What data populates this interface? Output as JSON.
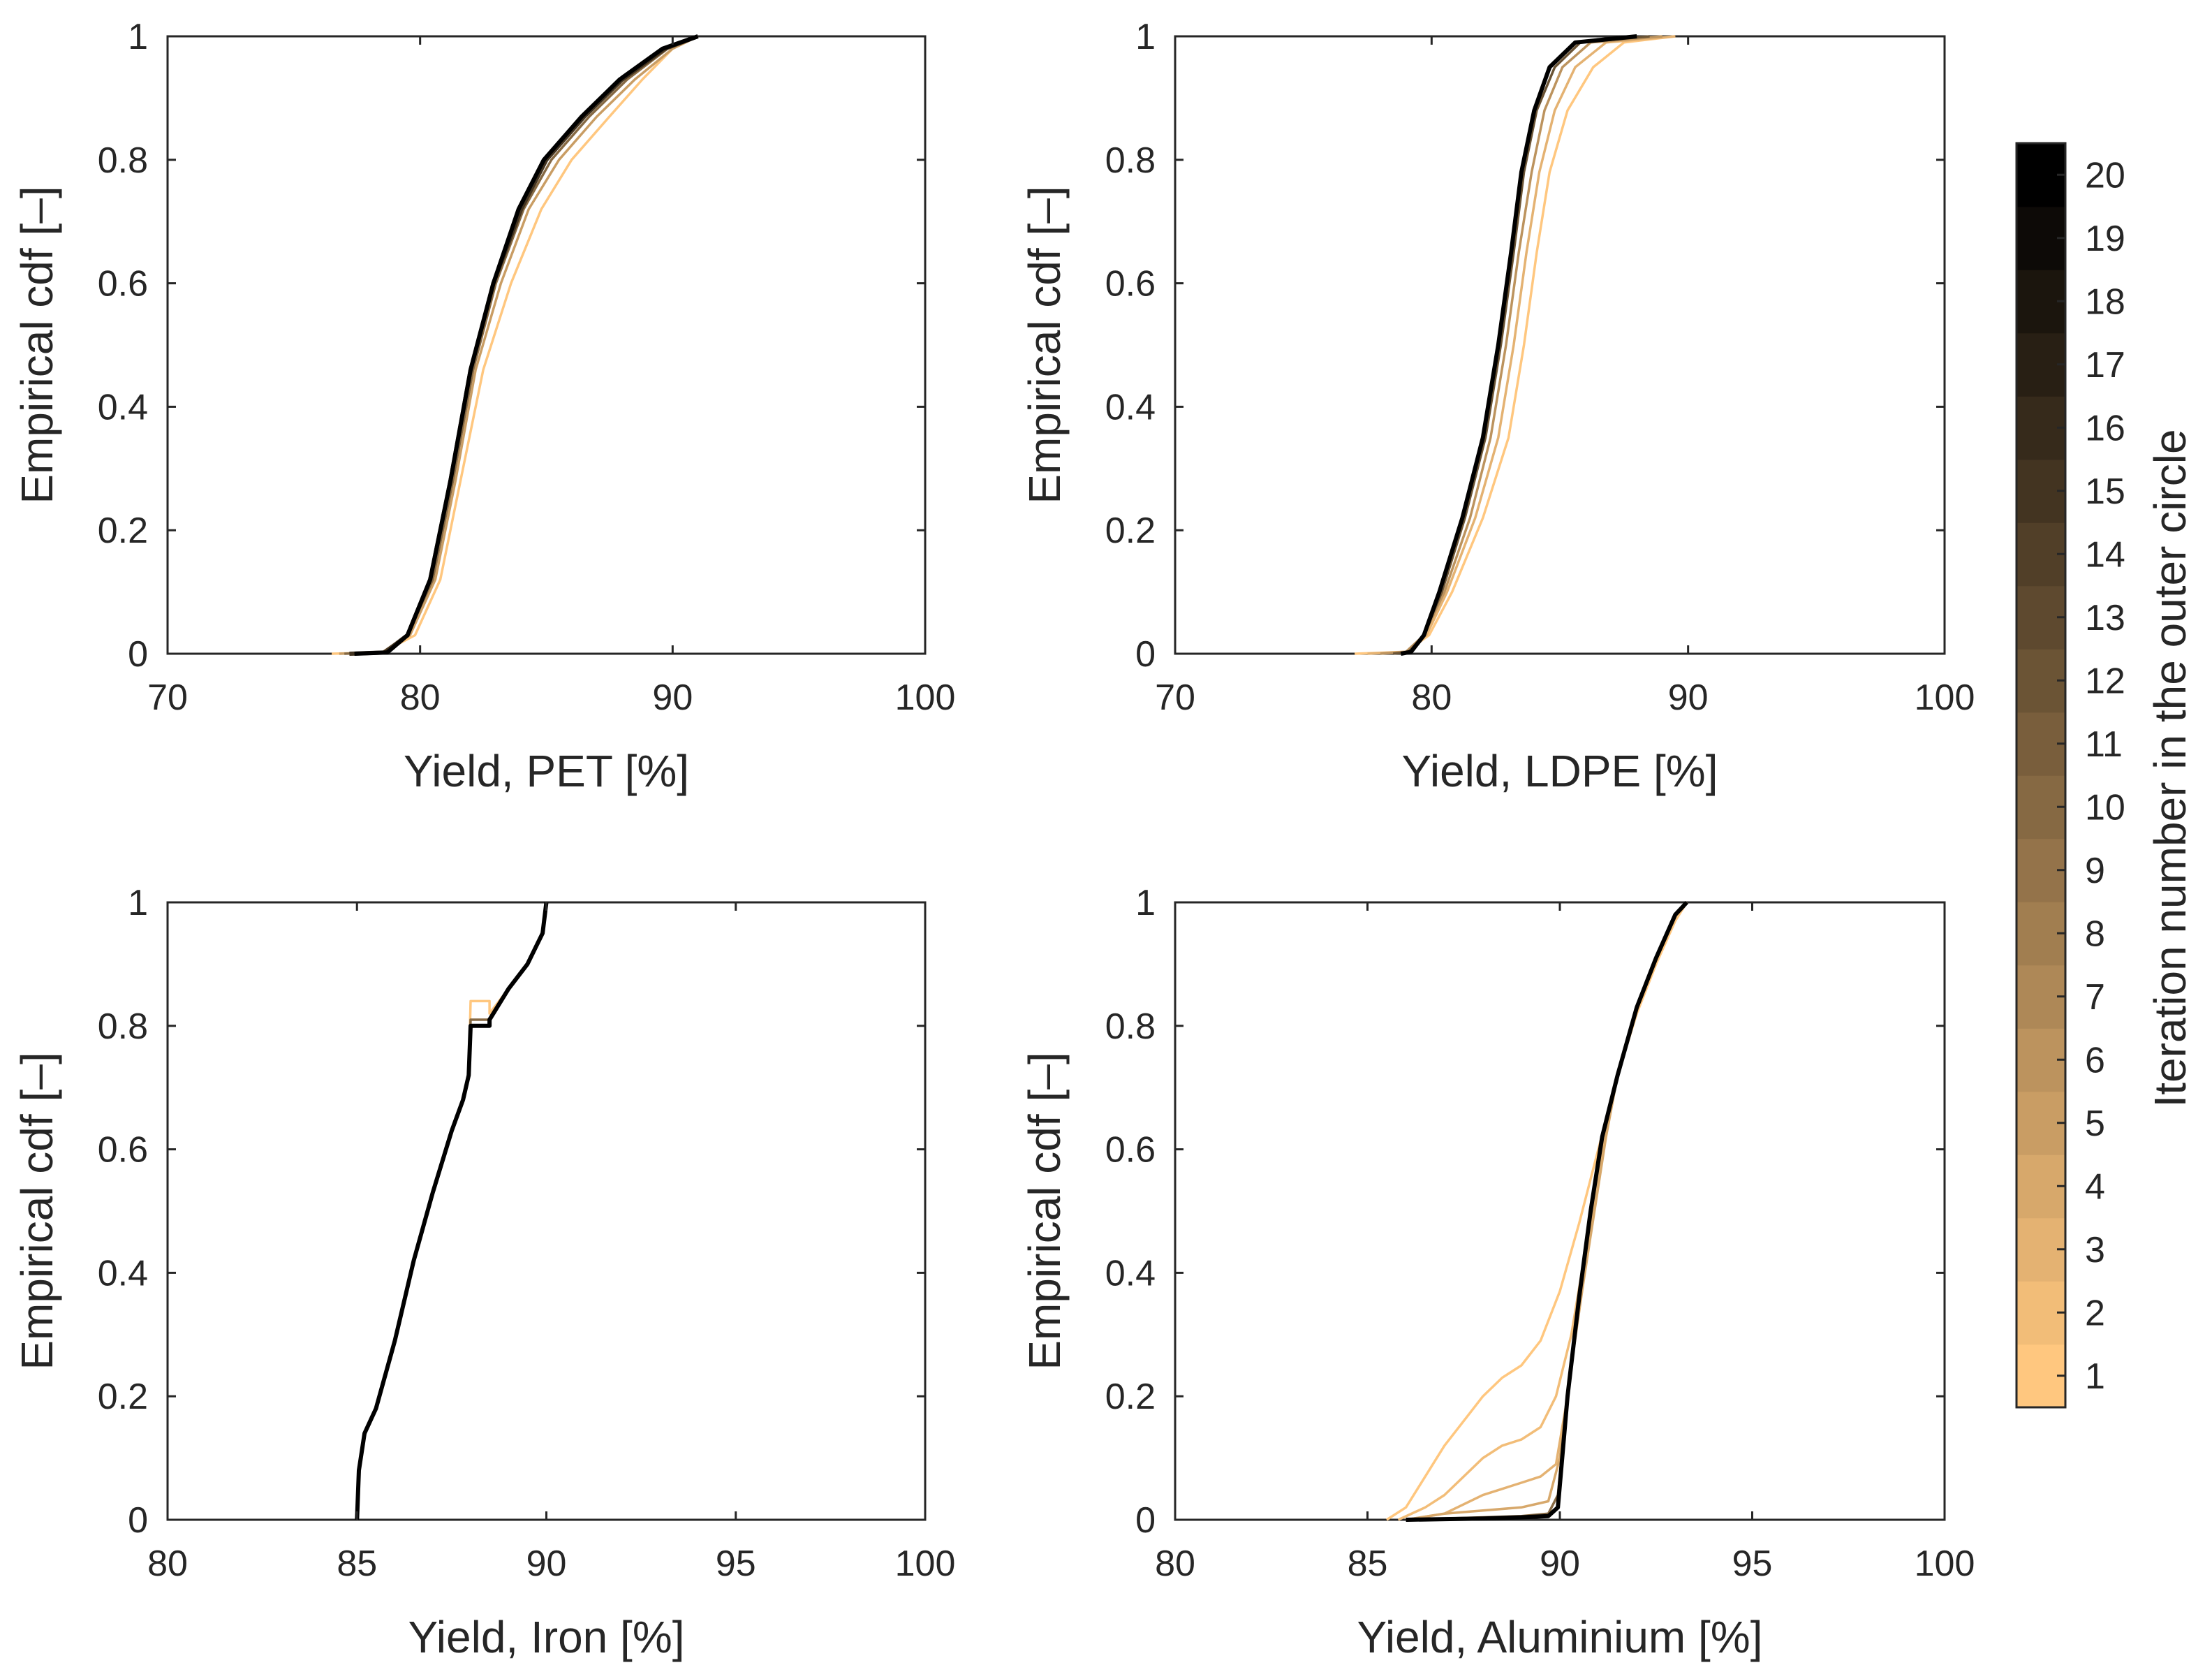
{
  "figure": {
    "colorbar": {
      "label": "Iteration number in the outer circle",
      "ticks": [
        "1",
        "2",
        "3",
        "4",
        "5",
        "6",
        "7",
        "8",
        "9",
        "10",
        "11",
        "12",
        "13",
        "14",
        "15",
        "16",
        "17",
        "18",
        "19",
        "20"
      ],
      "color_low": "#ffc77f",
      "color_high": "#000000"
    }
  },
  "chart_data": [
    {
      "type": "line",
      "id": "pet",
      "title": "",
      "xlabel": "Yield, PET [%]",
      "ylabel": "Empirical cdf [–]",
      "xlim": [
        70,
        100
      ],
      "ylim": [
        0,
        1
      ],
      "xticks": [
        "70",
        "80",
        "90",
        "100"
      ],
      "yticks": [
        "0",
        "0.2",
        "0.4",
        "0.6",
        "0.8",
        "1"
      ],
      "series": [
        {
          "name": "iteration 1",
          "iteration": 1,
          "x": [
            76.5,
            78.5,
            79.8,
            80.8,
            81.6,
            82.5,
            83.6,
            84.8,
            86.0,
            87.5,
            88.8,
            90.0,
            91.0
          ],
          "y": [
            0,
            0.002,
            0.03,
            0.12,
            0.28,
            0.46,
            0.6,
            0.72,
            0.8,
            0.87,
            0.93,
            0.98,
            1.0
          ]
        },
        {
          "name": "iteration 5",
          "iteration": 5,
          "x": [
            76.8,
            78.5,
            79.6,
            80.6,
            81.4,
            82.2,
            83.2,
            84.3,
            85.5,
            87.0,
            88.5,
            90.0,
            91.0
          ],
          "y": [
            0,
            0.002,
            0.03,
            0.12,
            0.28,
            0.46,
            0.6,
            0.72,
            0.8,
            0.87,
            0.93,
            0.98,
            1.0
          ]
        },
        {
          "name": "iteration 10",
          "iteration": 10,
          "x": [
            77.0,
            78.5,
            79.5,
            80.5,
            81.3,
            82.1,
            83.0,
            84.1,
            85.2,
            86.7,
            88.2,
            89.8,
            91.0
          ],
          "y": [
            0,
            0.002,
            0.03,
            0.12,
            0.28,
            0.46,
            0.6,
            0.72,
            0.8,
            0.87,
            0.93,
            0.98,
            1.0
          ]
        },
        {
          "name": "iteration 15",
          "iteration": 15,
          "x": [
            77.2,
            78.6,
            79.5,
            80.4,
            81.2,
            82.0,
            82.9,
            84.0,
            85.0,
            86.5,
            88.0,
            89.7,
            91.0
          ],
          "y": [
            0,
            0.002,
            0.03,
            0.12,
            0.28,
            0.46,
            0.6,
            0.72,
            0.8,
            0.87,
            0.93,
            0.98,
            1.0
          ]
        },
        {
          "name": "iteration 20",
          "iteration": 20,
          "x": [
            77.4,
            78.7,
            79.5,
            80.4,
            81.2,
            82.0,
            82.9,
            83.9,
            84.9,
            86.4,
            87.9,
            89.6,
            91.0
          ],
          "y": [
            0,
            0.002,
            0.03,
            0.12,
            0.28,
            0.46,
            0.6,
            0.72,
            0.8,
            0.87,
            0.93,
            0.98,
            1.0
          ]
        }
      ]
    },
    {
      "type": "line",
      "id": "ldpe",
      "title": "",
      "xlabel": "Yield, LDPE [%]",
      "ylabel": "Empirical cdf [–]",
      "xlim": [
        70,
        100
      ],
      "ylim": [
        0,
        1
      ],
      "xticks": [
        "70",
        "80",
        "90",
        "100"
      ],
      "yticks": [
        "0",
        "0.2",
        "0.4",
        "0.6",
        "0.8",
        "1"
      ],
      "series": [
        {
          "name": "iteration 1",
          "iteration": 1,
          "x": [
            77.0,
            79.0,
            79.9,
            80.8,
            82.0,
            83.0,
            83.6,
            84.1,
            84.6,
            85.3,
            86.3,
            87.5,
            89.5
          ],
          "y": [
            0,
            0.003,
            0.03,
            0.1,
            0.22,
            0.35,
            0.5,
            0.65,
            0.78,
            0.88,
            0.95,
            0.99,
            1.0
          ]
        },
        {
          "name": "iteration 3",
          "iteration": 3,
          "x": [
            77.5,
            79.0,
            79.8,
            80.6,
            81.7,
            82.6,
            83.2,
            83.7,
            84.2,
            84.8,
            85.6,
            86.8,
            89.5
          ],
          "y": [
            0,
            0.003,
            0.03,
            0.1,
            0.22,
            0.35,
            0.5,
            0.65,
            0.78,
            0.88,
            0.95,
            0.99,
            1.0
          ]
        },
        {
          "name": "iteration 6",
          "iteration": 6,
          "x": [
            78.0,
            79.0,
            79.7,
            80.5,
            81.5,
            82.3,
            82.9,
            83.4,
            83.9,
            84.4,
            85.1,
            86.2,
            89.0
          ],
          "y": [
            0,
            0.003,
            0.03,
            0.1,
            0.22,
            0.35,
            0.5,
            0.65,
            0.78,
            0.88,
            0.95,
            0.99,
            1.0
          ]
        },
        {
          "name": "iteration 12",
          "iteration": 12,
          "x": [
            78.5,
            79.1,
            79.7,
            80.4,
            81.3,
            82.1,
            82.7,
            83.2,
            83.6,
            84.1,
            84.8,
            85.8,
            88.5
          ],
          "y": [
            0,
            0.003,
            0.03,
            0.1,
            0.22,
            0.35,
            0.5,
            0.65,
            0.78,
            0.88,
            0.95,
            0.99,
            1.0
          ]
        },
        {
          "name": "iteration 20",
          "iteration": 20,
          "x": [
            78.8,
            79.2,
            79.7,
            80.3,
            81.2,
            82.0,
            82.6,
            83.1,
            83.5,
            84.0,
            84.6,
            85.6,
            88.0
          ],
          "y": [
            0,
            0.003,
            0.03,
            0.1,
            0.22,
            0.35,
            0.5,
            0.65,
            0.78,
            0.88,
            0.95,
            0.99,
            1.0
          ]
        }
      ]
    },
    {
      "type": "line",
      "id": "iron",
      "title": "",
      "xlabel": "Yield, Iron [%]",
      "ylabel": "Empirical cdf [–]",
      "xlim": [
        80,
        100
      ],
      "ylim": [
        0,
        1
      ],
      "xticks": [
        "80",
        "85",
        "90",
        "95",
        "100"
      ],
      "yticks": [
        "0",
        "0.2",
        "0.4",
        "0.6",
        "0.8",
        "1"
      ],
      "series": [
        {
          "name": "iteration 1",
          "iteration": 1,
          "x": [
            85.0,
            85.05,
            85.2,
            85.5,
            86.0,
            86.5,
            87.0,
            87.5,
            87.8,
            87.95,
            88.0,
            88.5,
            88.5,
            89.0,
            89.5,
            89.9,
            90.0
          ],
          "y": [
            0,
            0.08,
            0.14,
            0.18,
            0.29,
            0.42,
            0.53,
            0.63,
            0.68,
            0.72,
            0.84,
            0.84,
            0.82,
            0.86,
            0.9,
            0.95,
            1.0
          ]
        },
        {
          "name": "iteration 10",
          "iteration": 10,
          "x": [
            85.0,
            85.05,
            85.2,
            85.5,
            86.0,
            86.5,
            87.0,
            87.5,
            87.8,
            87.95,
            88.0,
            88.5,
            88.5,
            89.0,
            89.5,
            89.9,
            90.0
          ],
          "y": [
            0,
            0.08,
            0.14,
            0.18,
            0.29,
            0.42,
            0.53,
            0.63,
            0.68,
            0.72,
            0.81,
            0.81,
            0.81,
            0.86,
            0.9,
            0.95,
            1.0
          ]
        },
        {
          "name": "iteration 20",
          "iteration": 20,
          "x": [
            85.0,
            85.05,
            85.2,
            85.5,
            86.0,
            86.5,
            87.0,
            87.5,
            87.8,
            87.95,
            88.0,
            88.5,
            88.5,
            89.0,
            89.5,
            89.9,
            90.0
          ],
          "y": [
            0,
            0.08,
            0.14,
            0.18,
            0.29,
            0.42,
            0.53,
            0.63,
            0.68,
            0.72,
            0.8,
            0.8,
            0.81,
            0.86,
            0.9,
            0.95,
            1.0
          ]
        }
      ]
    },
    {
      "type": "line",
      "id": "aluminium",
      "title": "",
      "xlabel": "Yield, Aluminium [%]",
      "ylabel": "Empirical cdf [–]",
      "xlim": [
        80,
        100
      ],
      "ylim": [
        0,
        1
      ],
      "xticks": [
        "80",
        "85",
        "90",
        "95",
        "100"
      ],
      "yticks": [
        "0",
        "0.2",
        "0.4",
        "0.6",
        "0.8",
        "1"
      ],
      "series": [
        {
          "name": "iteration 1",
          "iteration": 1,
          "x": [
            85.5,
            86.0,
            86.5,
            87.0,
            87.5,
            88.0,
            88.5,
            89.0,
            89.5,
            90.0,
            90.5,
            91.0,
            91.5,
            92.0,
            92.5,
            93.0,
            93.3
          ],
          "y": [
            0,
            0.02,
            0.07,
            0.12,
            0.16,
            0.2,
            0.23,
            0.25,
            0.29,
            0.37,
            0.48,
            0.6,
            0.72,
            0.82,
            0.9,
            0.97,
            1.0
          ]
        },
        {
          "name": "iteration 2",
          "iteration": 2,
          "x": [
            85.8,
            86.5,
            87.0,
            87.5,
            88.0,
            88.5,
            89.0,
            89.5,
            89.9,
            90.3,
            90.7,
            91.1,
            91.5,
            92.0,
            92.5,
            93.0,
            93.3
          ],
          "y": [
            0,
            0.02,
            0.04,
            0.07,
            0.1,
            0.12,
            0.13,
            0.15,
            0.2,
            0.3,
            0.45,
            0.6,
            0.72,
            0.83,
            0.91,
            0.98,
            1.0
          ]
        },
        {
          "name": "iteration 3",
          "iteration": 3,
          "x": [
            86.0,
            87.0,
            88.0,
            88.5,
            89.0,
            89.5,
            89.9,
            90.2,
            90.5,
            90.8,
            91.1,
            91.5,
            92.0,
            92.5,
            93.0,
            93.3
          ],
          "y": [
            0,
            0.01,
            0.04,
            0.05,
            0.06,
            0.07,
            0.09,
            0.2,
            0.35,
            0.48,
            0.6,
            0.72,
            0.83,
            0.91,
            0.98,
            1.0
          ]
        },
        {
          "name": "iteration 4",
          "iteration": 4,
          "x": [
            86.0,
            87.0,
            88.0,
            89.0,
            89.7,
            90.0,
            90.3,
            90.6,
            90.9,
            91.2,
            91.5,
            92.0,
            92.5,
            93.0,
            93.3
          ],
          "y": [
            0,
            0.01,
            0.015,
            0.02,
            0.03,
            0.1,
            0.25,
            0.38,
            0.5,
            0.62,
            0.72,
            0.83,
            0.91,
            0.98,
            1.0
          ]
        },
        {
          "name": "iteration 10",
          "iteration": 10,
          "x": [
            86.0,
            87.0,
            88.0,
            89.0,
            89.7,
            89.95,
            90.2,
            90.5,
            90.8,
            91.1,
            91.5,
            92.0,
            92.5,
            93.0,
            93.3
          ],
          "y": [
            0,
            0.002,
            0.004,
            0.006,
            0.01,
            0.04,
            0.2,
            0.36,
            0.5,
            0.62,
            0.72,
            0.83,
            0.91,
            0.98,
            1.0
          ]
        },
        {
          "name": "iteration 20",
          "iteration": 20,
          "x": [
            86.0,
            87.0,
            88.0,
            89.0,
            89.7,
            89.95,
            90.2,
            90.5,
            90.8,
            91.1,
            91.5,
            92.0,
            92.5,
            93.0,
            93.3
          ],
          "y": [
            0,
            0.001,
            0.002,
            0.004,
            0.006,
            0.02,
            0.2,
            0.36,
            0.5,
            0.62,
            0.72,
            0.83,
            0.91,
            0.98,
            1.0
          ]
        }
      ]
    }
  ]
}
